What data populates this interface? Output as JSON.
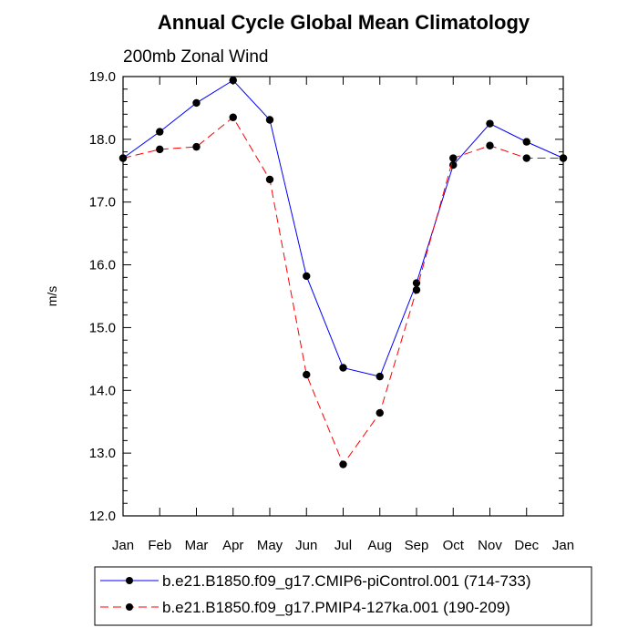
{
  "chart_data": {
    "type": "line",
    "title": "Annual Cycle Global Mean Climatology",
    "subtitle": "200mb Zonal Wind",
    "ylabel": "m/s",
    "xlabel": "",
    "categories": [
      "Jan",
      "Feb",
      "Mar",
      "Apr",
      "May",
      "Jun",
      "Jul",
      "Aug",
      "Sep",
      "Oct",
      "Nov",
      "Dec",
      "Jan"
    ],
    "ylim": [
      12.0,
      19.0
    ],
    "yticks": [
      "12.0",
      "13.0",
      "14.0",
      "15.0",
      "16.0",
      "17.0",
      "18.0",
      "19.0"
    ],
    "grid": false,
    "legend_position": "bottom",
    "series": [
      {
        "name": "b.e21.B1850.f09_g17.CMIP6-piControl.001 (714-733)",
        "color": "#0000ff",
        "line_style": "solid",
        "values": [
          17.7,
          18.12,
          18.58,
          18.94,
          18.31,
          15.82,
          14.36,
          14.22,
          15.71,
          17.59,
          18.25,
          17.96,
          17.7
        ]
      },
      {
        "name": "b.e21.B1850.f09_g17.PMIP4-127ka.001 (190-209)",
        "color": "#ff0000",
        "line_style": "dashed",
        "values": [
          17.7,
          17.84,
          17.88,
          18.35,
          17.36,
          14.25,
          12.82,
          13.64,
          15.6,
          17.7,
          17.9,
          17.7,
          17.7
        ]
      }
    ]
  }
}
